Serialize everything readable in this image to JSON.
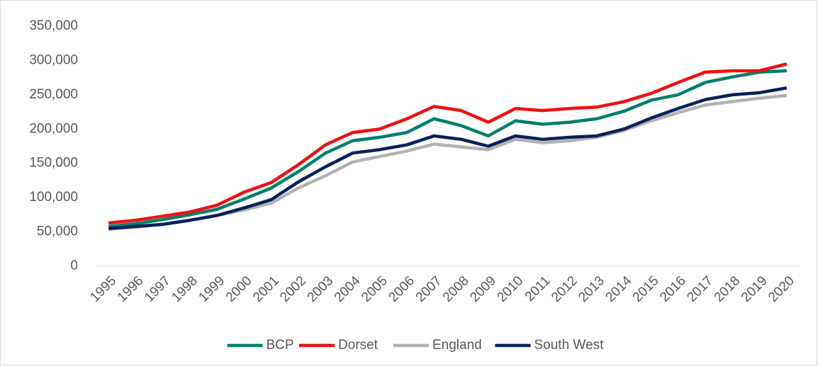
{
  "chart_data": {
    "type": "line",
    "categories": [
      "1995",
      "1996",
      "1997",
      "1998",
      "1999",
      "2000",
      "2001",
      "2002",
      "2003",
      "2004",
      "2005",
      "2006",
      "2007",
      "2008",
      "2009",
      "2010",
      "2011",
      "2012",
      "2013",
      "2014",
      "2015",
      "2016",
      "2017",
      "2018",
      "2019",
      "2020"
    ],
    "series": [
      {
        "name": "BCP",
        "color": "#00806a",
        "values": [
          58000,
          62000,
          68000,
          75000,
          83000,
          98000,
          114000,
          138000,
          165000,
          183000,
          188000,
          195000,
          215000,
          205000,
          190000,
          212000,
          207000,
          210000,
          215000,
          226000,
          242000,
          250000,
          268000,
          276000,
          283000,
          285000
        ]
      },
      {
        "name": "Dorset",
        "color": "#ee1111",
        "values": [
          63000,
          67000,
          73000,
          79000,
          89000,
          108000,
          122000,
          148000,
          177000,
          195000,
          200000,
          215000,
          233000,
          227000,
          210000,
          230000,
          227000,
          230000,
          232000,
          240000,
          252000,
          268000,
          283000,
          285000,
          285000,
          295000
        ]
      },
      {
        "name": "England",
        "color": "#b2b2b2",
        "values": [
          54000,
          57000,
          61000,
          67000,
          74000,
          82000,
          92000,
          114000,
          132000,
          152000,
          160000,
          168000,
          178000,
          174000,
          170000,
          185000,
          180000,
          183000,
          188000,
          198000,
          212000,
          224000,
          235000,
          240000,
          245000,
          249000
        ]
      },
      {
        "name": "South West",
        "color": "#0a1f5c",
        "values": [
          55000,
          58000,
          61000,
          67000,
          74000,
          85000,
          97000,
          123000,
          145000,
          165000,
          170000,
          177000,
          190000,
          185000,
          175000,
          190000,
          185000,
          188000,
          190000,
          200000,
          216000,
          230000,
          243000,
          250000,
          253000,
          260000
        ]
      }
    ],
    "ylim": [
      0,
      350000
    ],
    "yticks": [
      0,
      {
        "value": 50000,
        "label": "50,000"
      },
      {
        "value": 100000,
        "label": "100,000"
      },
      {
        "value": 150000,
        "label": "150,000"
      },
      {
        "value": 200000,
        "label": "200,000"
      },
      {
        "value": 250000,
        "label": "250,000"
      },
      {
        "value": 300000,
        "label": "300,000"
      },
      {
        "value": 350000,
        "label": "350,000"
      }
    ],
    "grid": false,
    "legend": "bottom"
  }
}
